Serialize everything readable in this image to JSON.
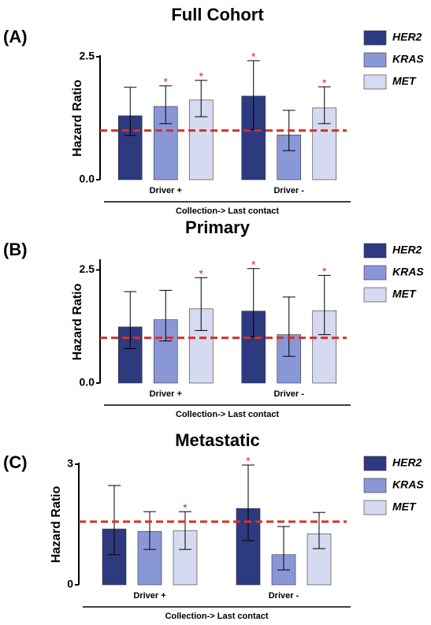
{
  "chart_data": [
    {
      "type": "bar",
      "panel_label": "(A)",
      "title": "Full Cohort",
      "y_label": "Hazard Ratio",
      "x_label": "Collection-> Last contact",
      "categories": [
        "Driver +",
        "Driver -"
      ],
      "ylim": [
        0,
        2.5
      ],
      "yticks": [
        {
          "value": 0,
          "label": "0.0"
        },
        2.5
      ],
      "reference_line": 1.0,
      "reference_color": "#d93025",
      "series": [
        {
          "name": "HER2",
          "color": "#2e3a80",
          "values": [
            1.3,
            1.7
          ],
          "ci_low": [
            0.9,
            1.02
          ],
          "ci_high": [
            1.88,
            2.42
          ],
          "annotations": [
            null,
            "*"
          ]
        },
        {
          "name": "KRAS",
          "color": "#8a97d6",
          "values": [
            1.49,
            0.91
          ],
          "ci_low": [
            1.14,
            0.59
          ],
          "ci_high": [
            1.91,
            1.41
          ],
          "annotations": [
            "*",
            null
          ]
        },
        {
          "name": "MET",
          "color": "#d5daf0",
          "values": [
            1.62,
            1.46
          ],
          "ci_low": [
            1.28,
            1.14
          ],
          "ci_high": [
            2.02,
            1.89
          ],
          "annotations": [
            "*",
            "*"
          ]
        }
      ]
    },
    {
      "type": "bar",
      "panel_label": "(B)",
      "title": "Primary",
      "y_label": "Hazard Ratio",
      "x_label": "Collection-> Last contact",
      "categories": [
        "Driver +",
        "Driver -"
      ],
      "ylim": [
        0,
        2.7
      ],
      "yticks": [
        {
          "value": 0,
          "label": "0.0"
        },
        2.5
      ],
      "reference_line": 1.0,
      "reference_color": "#d93025",
      "series": [
        {
          "name": "HER2",
          "color": "#2e3a80",
          "values": [
            1.24,
            1.59
          ],
          "ci_low": [
            0.76,
            1.02
          ],
          "ci_high": [
            2.02,
            2.53
          ],
          "annotations": [
            null,
            "*"
          ]
        },
        {
          "name": "KRAS",
          "color": "#8a97d6",
          "values": [
            1.4,
            1.07
          ],
          "ci_low": [
            0.93,
            0.59
          ],
          "ci_high": [
            2.05,
            1.9
          ],
          "annotations": [
            null,
            null
          ]
        },
        {
          "name": "MET",
          "color": "#d5daf0",
          "values": [
            1.64,
            1.6
          ],
          "ci_low": [
            1.16,
            1.07
          ],
          "ci_high": [
            2.33,
            2.38
          ],
          "annotations": [
            "*",
            "*"
          ]
        }
      ]
    },
    {
      "type": "bar",
      "panel_label": "(C)",
      "title": "Metastatic",
      "y_label": "Hazard Ratio",
      "x_label": "Collection-> Last contact",
      "categories": [
        "Driver +",
        "Driver -"
      ],
      "ylim": [
        0,
        3
      ],
      "yticks": [
        0,
        3
      ],
      "reference_line": 1.57,
      "reference_color": "#d93025",
      "series": [
        {
          "name": "HER2",
          "color": "#2e3a80",
          "values": [
            1.39,
            1.9
          ],
          "ci_low": [
            0.75,
            1.1
          ],
          "ci_high": [
            2.47,
            2.98
          ],
          "annotations": [
            null,
            "*"
          ]
        },
        {
          "name": "KRAS",
          "color": "#8a97d6",
          "values": [
            1.33,
            0.75
          ],
          "ci_low": [
            0.88,
            0.37
          ],
          "ci_high": [
            1.82,
            1.45
          ],
          "annotations": [
            null,
            null
          ]
        },
        {
          "name": "MET",
          "color": "#d5daf0",
          "values": [
            1.35,
            1.27
          ],
          "ci_low": [
            0.88,
            0.9
          ],
          "ci_high": [
            1.82,
            1.8
          ],
          "annotations": [
            "*",
            null
          ]
        }
      ]
    }
  ]
}
